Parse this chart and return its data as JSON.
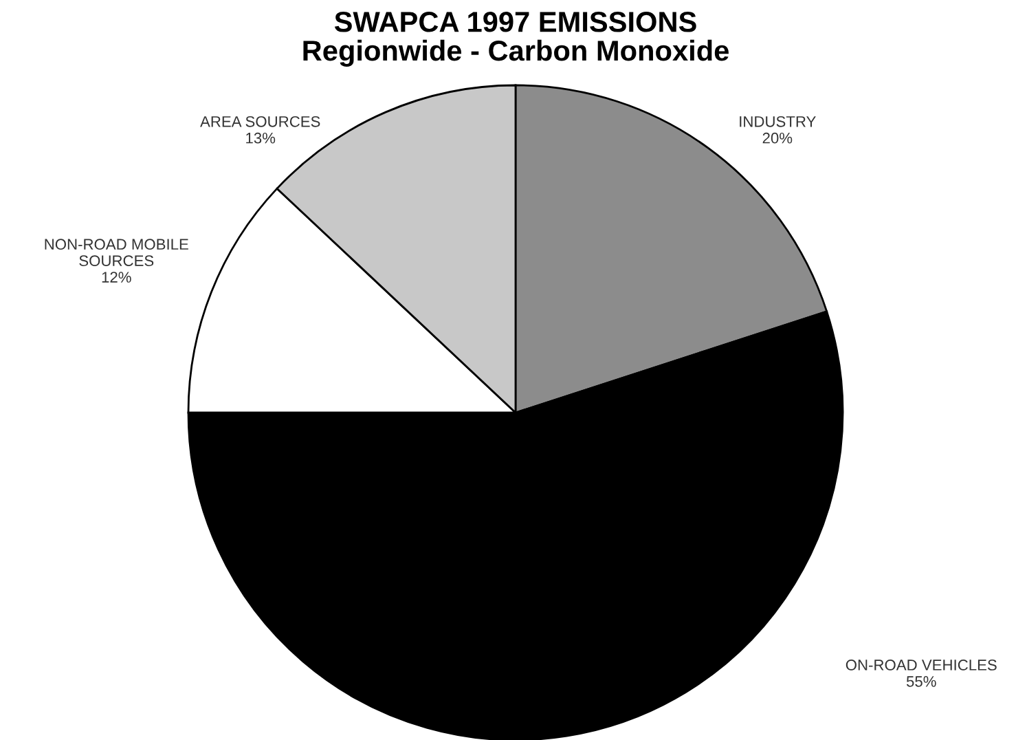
{
  "chart_data": {
    "type": "pie",
    "title": "SWAPCA 1997 EMISSIONS\nRegionwide - Carbon Monoxide",
    "categories": [
      "INDUSTRY",
      "ON-ROAD VEHICLES",
      "NON-ROAD MOBILE SOURCES",
      "AREA SOURCES"
    ],
    "values": [
      20,
      55,
      12,
      13
    ],
    "value_labels": [
      "20%",
      "55%",
      "12%",
      "13%"
    ],
    "colors": [
      "#8c8c8c",
      "#000000",
      "#ffffff",
      "#c8c8c8"
    ]
  }
}
